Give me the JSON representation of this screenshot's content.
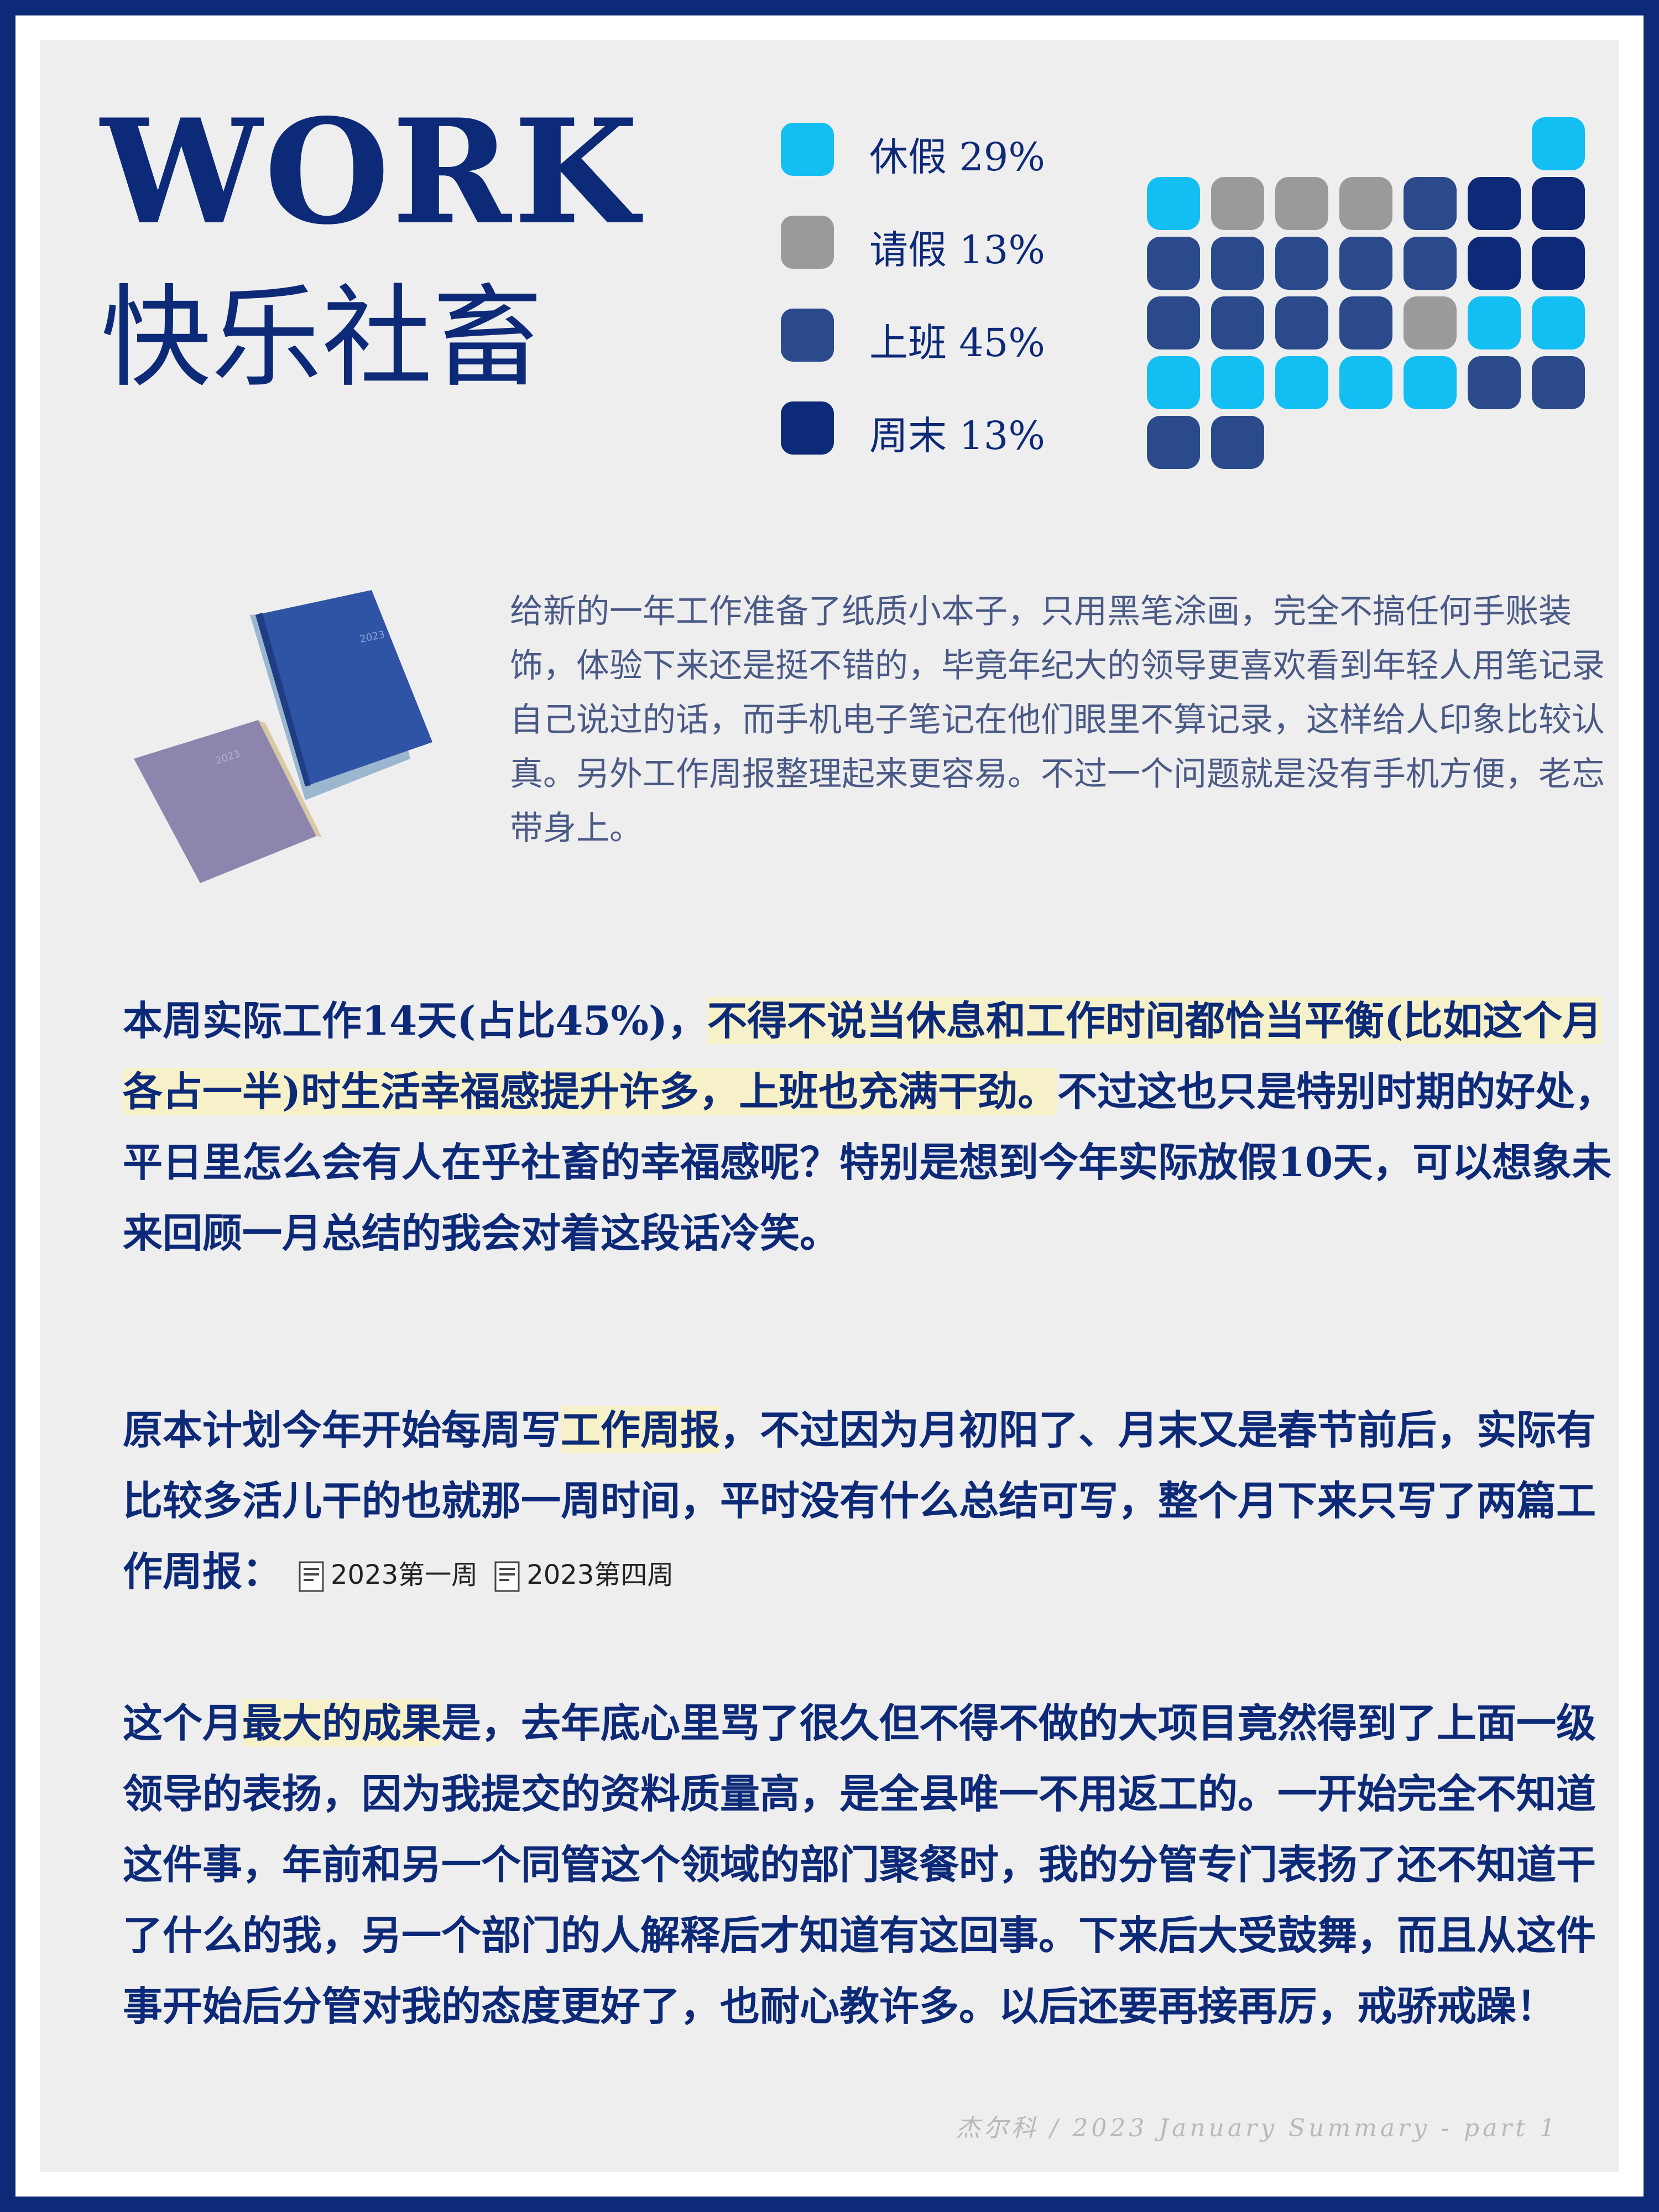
{
  "header": {
    "title_en": "WORK",
    "title_cn": "快乐社畜"
  },
  "legend": [
    {
      "label": "休假 29%",
      "color": "#13bff2"
    },
    {
      "label": "请假 13%",
      "color": "#9a9a9a"
    },
    {
      "label": "上班 45%",
      "color": "#2a4a8c"
    },
    {
      "label": "周末 13%",
      "color": "#0d2a78"
    }
  ],
  "calendar": {
    "colors": {
      "vacation": "#13bff2",
      "leave": "#9a9a9a",
      "work": "#2a4a8c",
      "weekend": "#0d2a78"
    },
    "rows": [
      [
        "",
        "",
        "",
        "",
        "",
        "",
        "vacation"
      ],
      [
        "vacation",
        "leave",
        "leave",
        "leave",
        "work",
        "weekend",
        "weekend"
      ],
      [
        "work",
        "work",
        "work",
        "work",
        "work",
        "weekend",
        "weekend"
      ],
      [
        "work",
        "work",
        "work",
        "work",
        "leave",
        "vacation",
        "vacation"
      ],
      [
        "vacation",
        "vacation",
        "vacation",
        "vacation",
        "vacation",
        "work",
        "work"
      ],
      [
        "work",
        "work",
        "",
        "",
        "",
        "",
        ""
      ]
    ]
  },
  "intro": {
    "text": "给新的一年工作准备了纸质小本子，只用黑笔涂画，完全不搞任何手账装饰，体验下来还是挺不错的，毕竟年纪大的领导更喜欢看到年轻人用笔记录自己说过的话，而手机电子笔记在他们眼里不算记录，这样给人印象比较认真。另外工作周报整理起来更容易。不过一个问题就是没有手机方便，老忘带身上。"
  },
  "para1": {
    "a": "本周实际工作14天(占比45%)，",
    "hl": "不得不说当休息和工作时间都恰当平衡(比如这个月各占一半)时生活幸福感提升许多，上班也充满干劲。",
    "b": "不过这也只是特别时期的好处，平日里怎么会有人在乎社畜的幸福感呢？特别是想到今年实际放假10天，可以想象未来回顾一月总结的我会对着这段话冷笑。"
  },
  "para2": {
    "a": "原本计划今年开始每周写",
    "hl": "工作周报",
    "b": "，不过因为月初阳了、月末又是春节前后，实际有比较多活儿干的也就那一周时间，平时没有什么总结可写，整个月下来只写了两篇工作周报：",
    "doc1": "2023第一周",
    "doc2": "2023第四周"
  },
  "para3": {
    "a": "这个月",
    "hl": "最大的成果",
    "b": "是，去年底心里骂了很久但不得不做的大项目竟然得到了上面一级领导的表扬，因为我提交的资料质量高，是全县唯一不用返工的。一开始完全不知道这件事，年前和另一个同管这个领域的部门聚餐时，我的分管专门表扬了还不知道干了什么的我，另一个部门的人解释后才知道有这回事。下来后大受鼓舞，而且从这件事开始后分管对我的态度更好了，也耐心教许多。以后还要再接再厉，戒骄戒躁！"
  },
  "footer": "杰尔科 / 2023 January Summary - part 1"
}
